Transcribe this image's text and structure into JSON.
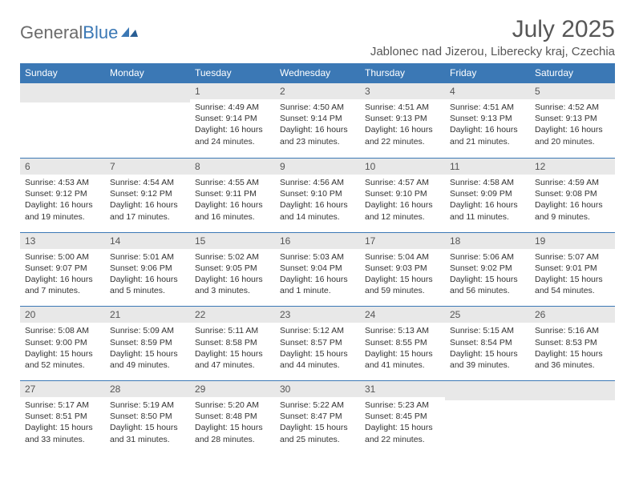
{
  "logo": {
    "text1": "General",
    "text2": "Blue"
  },
  "title": "July 2025",
  "location": "Jablonec nad Jizerou, Liberecky kraj, Czechia",
  "colors": {
    "header_bg": "#3b78b5",
    "header_text": "#ffffff",
    "daynum_bg": "#e8e8e8",
    "border": "#3b78b5",
    "title_color": "#575757"
  },
  "weekdays": [
    "Sunday",
    "Monday",
    "Tuesday",
    "Wednesday",
    "Thursday",
    "Friday",
    "Saturday"
  ],
  "weeks": [
    [
      null,
      null,
      {
        "n": "1",
        "sr": "4:49 AM",
        "ss": "9:14 PM",
        "dl": "16 hours and 24 minutes."
      },
      {
        "n": "2",
        "sr": "4:50 AM",
        "ss": "9:14 PM",
        "dl": "16 hours and 23 minutes."
      },
      {
        "n": "3",
        "sr": "4:51 AM",
        "ss": "9:13 PM",
        "dl": "16 hours and 22 minutes."
      },
      {
        "n": "4",
        "sr": "4:51 AM",
        "ss": "9:13 PM",
        "dl": "16 hours and 21 minutes."
      },
      {
        "n": "5",
        "sr": "4:52 AM",
        "ss": "9:13 PM",
        "dl": "16 hours and 20 minutes."
      }
    ],
    [
      {
        "n": "6",
        "sr": "4:53 AM",
        "ss": "9:12 PM",
        "dl": "16 hours and 19 minutes."
      },
      {
        "n": "7",
        "sr": "4:54 AM",
        "ss": "9:12 PM",
        "dl": "16 hours and 17 minutes."
      },
      {
        "n": "8",
        "sr": "4:55 AM",
        "ss": "9:11 PM",
        "dl": "16 hours and 16 minutes."
      },
      {
        "n": "9",
        "sr": "4:56 AM",
        "ss": "9:10 PM",
        "dl": "16 hours and 14 minutes."
      },
      {
        "n": "10",
        "sr": "4:57 AM",
        "ss": "9:10 PM",
        "dl": "16 hours and 12 minutes."
      },
      {
        "n": "11",
        "sr": "4:58 AM",
        "ss": "9:09 PM",
        "dl": "16 hours and 11 minutes."
      },
      {
        "n": "12",
        "sr": "4:59 AM",
        "ss": "9:08 PM",
        "dl": "16 hours and 9 minutes."
      }
    ],
    [
      {
        "n": "13",
        "sr": "5:00 AM",
        "ss": "9:07 PM",
        "dl": "16 hours and 7 minutes."
      },
      {
        "n": "14",
        "sr": "5:01 AM",
        "ss": "9:06 PM",
        "dl": "16 hours and 5 minutes."
      },
      {
        "n": "15",
        "sr": "5:02 AM",
        "ss": "9:05 PM",
        "dl": "16 hours and 3 minutes."
      },
      {
        "n": "16",
        "sr": "5:03 AM",
        "ss": "9:04 PM",
        "dl": "16 hours and 1 minute."
      },
      {
        "n": "17",
        "sr": "5:04 AM",
        "ss": "9:03 PM",
        "dl": "15 hours and 59 minutes."
      },
      {
        "n": "18",
        "sr": "5:06 AM",
        "ss": "9:02 PM",
        "dl": "15 hours and 56 minutes."
      },
      {
        "n": "19",
        "sr": "5:07 AM",
        "ss": "9:01 PM",
        "dl": "15 hours and 54 minutes."
      }
    ],
    [
      {
        "n": "20",
        "sr": "5:08 AM",
        "ss": "9:00 PM",
        "dl": "15 hours and 52 minutes."
      },
      {
        "n": "21",
        "sr": "5:09 AM",
        "ss": "8:59 PM",
        "dl": "15 hours and 49 minutes."
      },
      {
        "n": "22",
        "sr": "5:11 AM",
        "ss": "8:58 PM",
        "dl": "15 hours and 47 minutes."
      },
      {
        "n": "23",
        "sr": "5:12 AM",
        "ss": "8:57 PM",
        "dl": "15 hours and 44 minutes."
      },
      {
        "n": "24",
        "sr": "5:13 AM",
        "ss": "8:55 PM",
        "dl": "15 hours and 41 minutes."
      },
      {
        "n": "25",
        "sr": "5:15 AM",
        "ss": "8:54 PM",
        "dl": "15 hours and 39 minutes."
      },
      {
        "n": "26",
        "sr": "5:16 AM",
        "ss": "8:53 PM",
        "dl": "15 hours and 36 minutes."
      }
    ],
    [
      {
        "n": "27",
        "sr": "5:17 AM",
        "ss": "8:51 PM",
        "dl": "15 hours and 33 minutes."
      },
      {
        "n": "28",
        "sr": "5:19 AM",
        "ss": "8:50 PM",
        "dl": "15 hours and 31 minutes."
      },
      {
        "n": "29",
        "sr": "5:20 AM",
        "ss": "8:48 PM",
        "dl": "15 hours and 28 minutes."
      },
      {
        "n": "30",
        "sr": "5:22 AM",
        "ss": "8:47 PM",
        "dl": "15 hours and 25 minutes."
      },
      {
        "n": "31",
        "sr": "5:23 AM",
        "ss": "8:45 PM",
        "dl": "15 hours and 22 minutes."
      },
      null,
      null
    ]
  ],
  "labels": {
    "sunrise": "Sunrise:",
    "sunset": "Sunset:",
    "daylight": "Daylight:"
  }
}
